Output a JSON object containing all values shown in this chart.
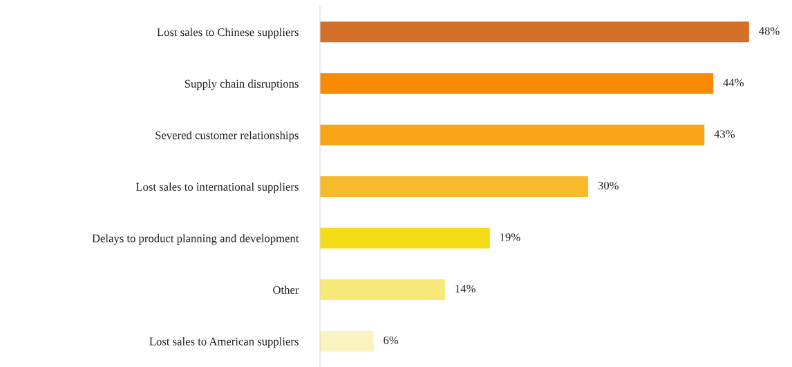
{
  "chart_data": {
    "type": "bar",
    "orientation": "horizontal",
    "categories": [
      "Lost sales to Chinese suppliers",
      "Supply chain disruptions",
      "Severed customer relationships",
      "Lost sales to international suppliers",
      "Delays to product planning and development",
      "Other",
      "Lost sales to American suppliers"
    ],
    "values": [
      48,
      44,
      43,
      30,
      19,
      14,
      6
    ],
    "colors": [
      "#d4702a",
      "#f98a05",
      "#f7a416",
      "#f6ba2c",
      "#f6db18",
      "#f7e97a",
      "#f9f3c0"
    ],
    "value_labels": [
      "48%",
      "44%",
      "43%",
      "30%",
      "19%",
      "14%",
      "6%"
    ],
    "grid": false,
    "legend": false
  }
}
